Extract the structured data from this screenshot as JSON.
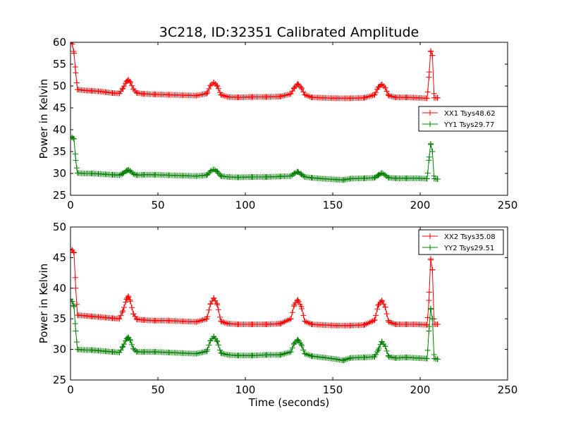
{
  "chart_data": [
    {
      "type": "line",
      "title": "3C218, ID:32351 Calibrated Amplitude",
      "xlabel": "",
      "ylabel": "Power in Kelvin",
      "xlim": [
        0,
        250
      ],
      "ylim": [
        25,
        60
      ],
      "xticks": [
        "0",
        "50",
        "100",
        "150",
        "200",
        "250"
      ],
      "yticks": [
        "25",
        "30",
        "35",
        "40",
        "45",
        "50",
        "55",
        "60"
      ],
      "grid": false,
      "legend_position": "center-right",
      "series": [
        {
          "name": "XX1 Tsys48.62",
          "color": "#ff0000",
          "x": [
            0,
            1,
            2,
            3,
            4,
            8,
            12,
            16,
            20,
            24,
            28,
            30,
            32,
            33,
            34,
            36,
            38,
            42,
            48,
            56,
            64,
            72,
            78,
            80,
            82,
            84,
            86,
            90,
            96,
            104,
            112,
            120,
            126,
            128,
            130,
            132,
            134,
            138,
            144,
            152,
            160,
            168,
            174,
            176,
            178,
            180,
            182,
            186,
            192,
            198,
            204,
            205,
            206,
            207,
            208,
            210
          ],
          "y": [
            59.8,
            59.6,
            57.5,
            53.0,
            49.2,
            49.0,
            48.9,
            48.8,
            48.6,
            48.4,
            48.3,
            49.5,
            51.0,
            51.4,
            51.0,
            49.3,
            48.4,
            48.2,
            48.1,
            48.0,
            47.9,
            47.8,
            48.3,
            50.1,
            50.8,
            50.0,
            48.0,
            47.5,
            47.4,
            47.5,
            47.5,
            47.6,
            48.2,
            49.6,
            50.5,
            49.6,
            48.0,
            47.4,
            47.3,
            47.2,
            47.2,
            47.3,
            48.0,
            49.7,
            50.4,
            49.6,
            47.8,
            47.4,
            47.4,
            47.3,
            47.2,
            52.0,
            58.0,
            57.0,
            47.3,
            47.3
          ]
        },
        {
          "name": "YY1 Tsys29.77",
          "color": "#008000",
          "x": [
            0,
            1,
            2,
            3,
            4,
            8,
            12,
            16,
            20,
            24,
            28,
            30,
            32,
            33,
            34,
            36,
            38,
            42,
            48,
            56,
            64,
            72,
            78,
            80,
            82,
            84,
            86,
            90,
            96,
            104,
            112,
            120,
            126,
            128,
            130,
            132,
            134,
            138,
            144,
            152,
            156,
            160,
            168,
            174,
            176,
            178,
            180,
            182,
            186,
            192,
            198,
            204,
            205,
            206,
            207,
            208,
            210
          ],
          "y": [
            38.4,
            38.2,
            37.9,
            33.0,
            30.1,
            30.0,
            30.0,
            29.9,
            29.8,
            29.7,
            29.6,
            30.0,
            30.6,
            30.8,
            30.6,
            29.9,
            29.6,
            29.7,
            29.7,
            29.6,
            29.5,
            29.4,
            29.6,
            30.5,
            30.9,
            30.4,
            29.4,
            29.2,
            29.1,
            29.2,
            29.2,
            29.3,
            29.4,
            30.0,
            30.4,
            29.8,
            29.2,
            29.0,
            28.8,
            28.6,
            28.5,
            28.8,
            28.9,
            29.0,
            29.6,
            30.1,
            29.6,
            29.0,
            28.9,
            28.9,
            28.9,
            28.8,
            33.0,
            36.8,
            35.0,
            28.8,
            28.7
          ]
        }
      ]
    },
    {
      "type": "line",
      "title": "",
      "xlabel": "Time (seconds)",
      "ylabel": "Power in Kelvin",
      "xlim": [
        0,
        250
      ],
      "ylim": [
        25,
        50
      ],
      "xticks": [
        "0",
        "50",
        "100",
        "150",
        "200",
        "250"
      ],
      "yticks": [
        "25",
        "30",
        "35",
        "40",
        "45",
        "50"
      ],
      "grid": false,
      "legend_position": "top-right",
      "series": [
        {
          "name": "XX2 Tsys35.08",
          "color": "#ff0000",
          "x": [
            0,
            1,
            2,
            3,
            4,
            8,
            12,
            16,
            20,
            24,
            28,
            30,
            32,
            33,
            34,
            36,
            38,
            42,
            48,
            56,
            64,
            72,
            78,
            80,
            82,
            84,
            86,
            90,
            96,
            104,
            112,
            120,
            126,
            128,
            130,
            132,
            134,
            138,
            144,
            152,
            160,
            168,
            174,
            176,
            178,
            180,
            182,
            186,
            192,
            198,
            204,
            205,
            206,
            207,
            208,
            210
          ],
          "y": [
            46.4,
            46.2,
            45.8,
            40.0,
            35.6,
            35.5,
            35.4,
            35.3,
            35.2,
            35.1,
            35.0,
            36.3,
            38.2,
            38.7,
            38.1,
            35.8,
            34.9,
            34.8,
            34.7,
            34.7,
            34.6,
            34.5,
            35.0,
            37.4,
            38.4,
            37.3,
            34.6,
            34.2,
            34.1,
            34.1,
            34.1,
            34.2,
            35.0,
            37.3,
            38.1,
            37.0,
            34.6,
            34.1,
            34.0,
            33.9,
            33.9,
            34.0,
            34.8,
            37.2,
            38.0,
            36.9,
            34.5,
            34.1,
            34.1,
            34.1,
            34.0,
            38.0,
            44.8,
            43.0,
            34.1,
            34.1
          ]
        },
        {
          "name": "YY2 Tsys29.51",
          "color": "#008000",
          "x": [
            0,
            1,
            2,
            3,
            4,
            8,
            12,
            16,
            20,
            24,
            28,
            30,
            32,
            33,
            34,
            36,
            38,
            42,
            48,
            56,
            64,
            72,
            78,
            80,
            82,
            84,
            86,
            90,
            96,
            104,
            112,
            120,
            126,
            128,
            130,
            132,
            134,
            138,
            144,
            152,
            156,
            160,
            168,
            174,
            176,
            178,
            180,
            182,
            186,
            192,
            198,
            204,
            205,
            206,
            207,
            208,
            210
          ],
          "y": [
            38.2,
            37.8,
            37.0,
            33.0,
            30.0,
            29.9,
            29.9,
            29.8,
            29.7,
            29.6,
            29.5,
            30.5,
            31.7,
            32.0,
            31.6,
            30.1,
            29.6,
            29.6,
            29.6,
            29.5,
            29.4,
            29.3,
            29.7,
            31.4,
            32.1,
            31.3,
            29.4,
            29.1,
            29.0,
            29.0,
            29.1,
            29.1,
            29.6,
            31.0,
            31.6,
            30.8,
            29.3,
            28.9,
            28.7,
            28.4,
            28.2,
            28.6,
            28.7,
            28.8,
            29.9,
            31.3,
            30.5,
            28.8,
            28.6,
            28.7,
            28.6,
            28.5,
            33.0,
            36.7,
            35.0,
            28.5,
            28.4
          ]
        }
      ]
    }
  ]
}
